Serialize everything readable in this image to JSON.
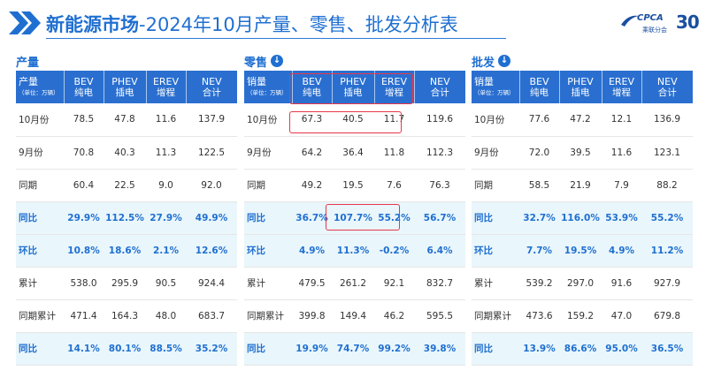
{
  "header": {
    "title_bold": "新能源市场",
    "title_rest": "-2024年10月产量、零售、批发分析表"
  },
  "logo": {
    "name": "CPCA",
    "sub": "乘联分会",
    "anniversary": "30"
  },
  "colors": {
    "accent": "#1f6fd1",
    "header_bg": "#2a6fd0",
    "highlight_bg": "#e9f6fb",
    "annotation": "#e8364a"
  },
  "columns": [
    {
      "main": "BEV",
      "sub": "纯电"
    },
    {
      "main": "PHEV",
      "sub": "插电"
    },
    {
      "main": "EREV",
      "sub": "增程"
    },
    {
      "main": "NEV",
      "sub": "合计"
    }
  ],
  "unit_note": "（单位：万辆）",
  "panels": [
    {
      "title": "产量",
      "corner": "产量",
      "rows": [
        {
          "label": "10月份",
          "values": [
            "78.5",
            "47.8",
            "11.6",
            "137.9"
          ]
        },
        {
          "label": "9月份",
          "values": [
            "70.8",
            "40.3",
            "11.3",
            "122.5"
          ]
        },
        {
          "label": "同期",
          "values": [
            "60.4",
            "22.5",
            "9.0",
            "92.0"
          ]
        },
        {
          "label": "同比",
          "values": [
            "29.9%",
            "112.5%",
            "27.9%",
            "49.9%"
          ]
        },
        {
          "label": "环比",
          "values": [
            "10.8%",
            "18.6%",
            "2.1%",
            "12.6%"
          ]
        },
        {
          "label": "累计",
          "values": [
            "538.0",
            "295.9",
            "90.5",
            "924.4"
          ]
        },
        {
          "label": "同期累计",
          "values": [
            "471.4",
            "164.3",
            "48.0",
            "683.7"
          ]
        },
        {
          "label": "同比",
          "values": [
            "14.1%",
            "80.1%",
            "88.5%",
            "35.2%"
          ]
        }
      ]
    },
    {
      "title": "零售",
      "corner": "销量",
      "rows": [
        {
          "label": "10月份",
          "values": [
            "67.3",
            "40.5",
            "11.7",
            "119.6"
          ]
        },
        {
          "label": "9月份",
          "values": [
            "64.2",
            "36.4",
            "11.8",
            "112.3"
          ]
        },
        {
          "label": "同期",
          "values": [
            "49.2",
            "19.5",
            "7.6",
            "76.3"
          ]
        },
        {
          "label": "同比",
          "values": [
            "36.7%",
            "107.7%",
            "55.2%",
            "56.7%"
          ]
        },
        {
          "label": "环比",
          "values": [
            "4.9%",
            "11.3%",
            "-0.2%",
            "6.4%"
          ]
        },
        {
          "label": "累计",
          "values": [
            "479.5",
            "261.2",
            "92.1",
            "832.7"
          ]
        },
        {
          "label": "同期累计",
          "values": [
            "399.8",
            "149.4",
            "46.2",
            "595.5"
          ]
        },
        {
          "label": "同比",
          "values": [
            "19.9%",
            "74.7%",
            "99.2%",
            "39.8%"
          ]
        }
      ]
    },
    {
      "title": "批发",
      "corner": "销量",
      "rows": [
        {
          "label": "10月份",
          "values": [
            "77.6",
            "47.2",
            "12.1",
            "136.9"
          ]
        },
        {
          "label": "9月份",
          "values": [
            "72.0",
            "39.5",
            "11.6",
            "123.1"
          ]
        },
        {
          "label": "同期",
          "values": [
            "58.5",
            "21.9",
            "7.9",
            "88.2"
          ]
        },
        {
          "label": "同比",
          "values": [
            "32.7%",
            "116.0%",
            "53.9%",
            "55.2%"
          ]
        },
        {
          "label": "环比",
          "values": [
            "7.7%",
            "19.5%",
            "4.9%",
            "11.2%"
          ]
        },
        {
          "label": "累计",
          "values": [
            "539.2",
            "297.0",
            "91.6",
            "927.9"
          ]
        },
        {
          "label": "同期累计",
          "values": [
            "473.6",
            "159.2",
            "47.0",
            "679.8"
          ]
        },
        {
          "label": "同比",
          "values": [
            "13.9%",
            "86.6%",
            "95.0%",
            "36.5%"
          ]
        }
      ]
    }
  ]
}
